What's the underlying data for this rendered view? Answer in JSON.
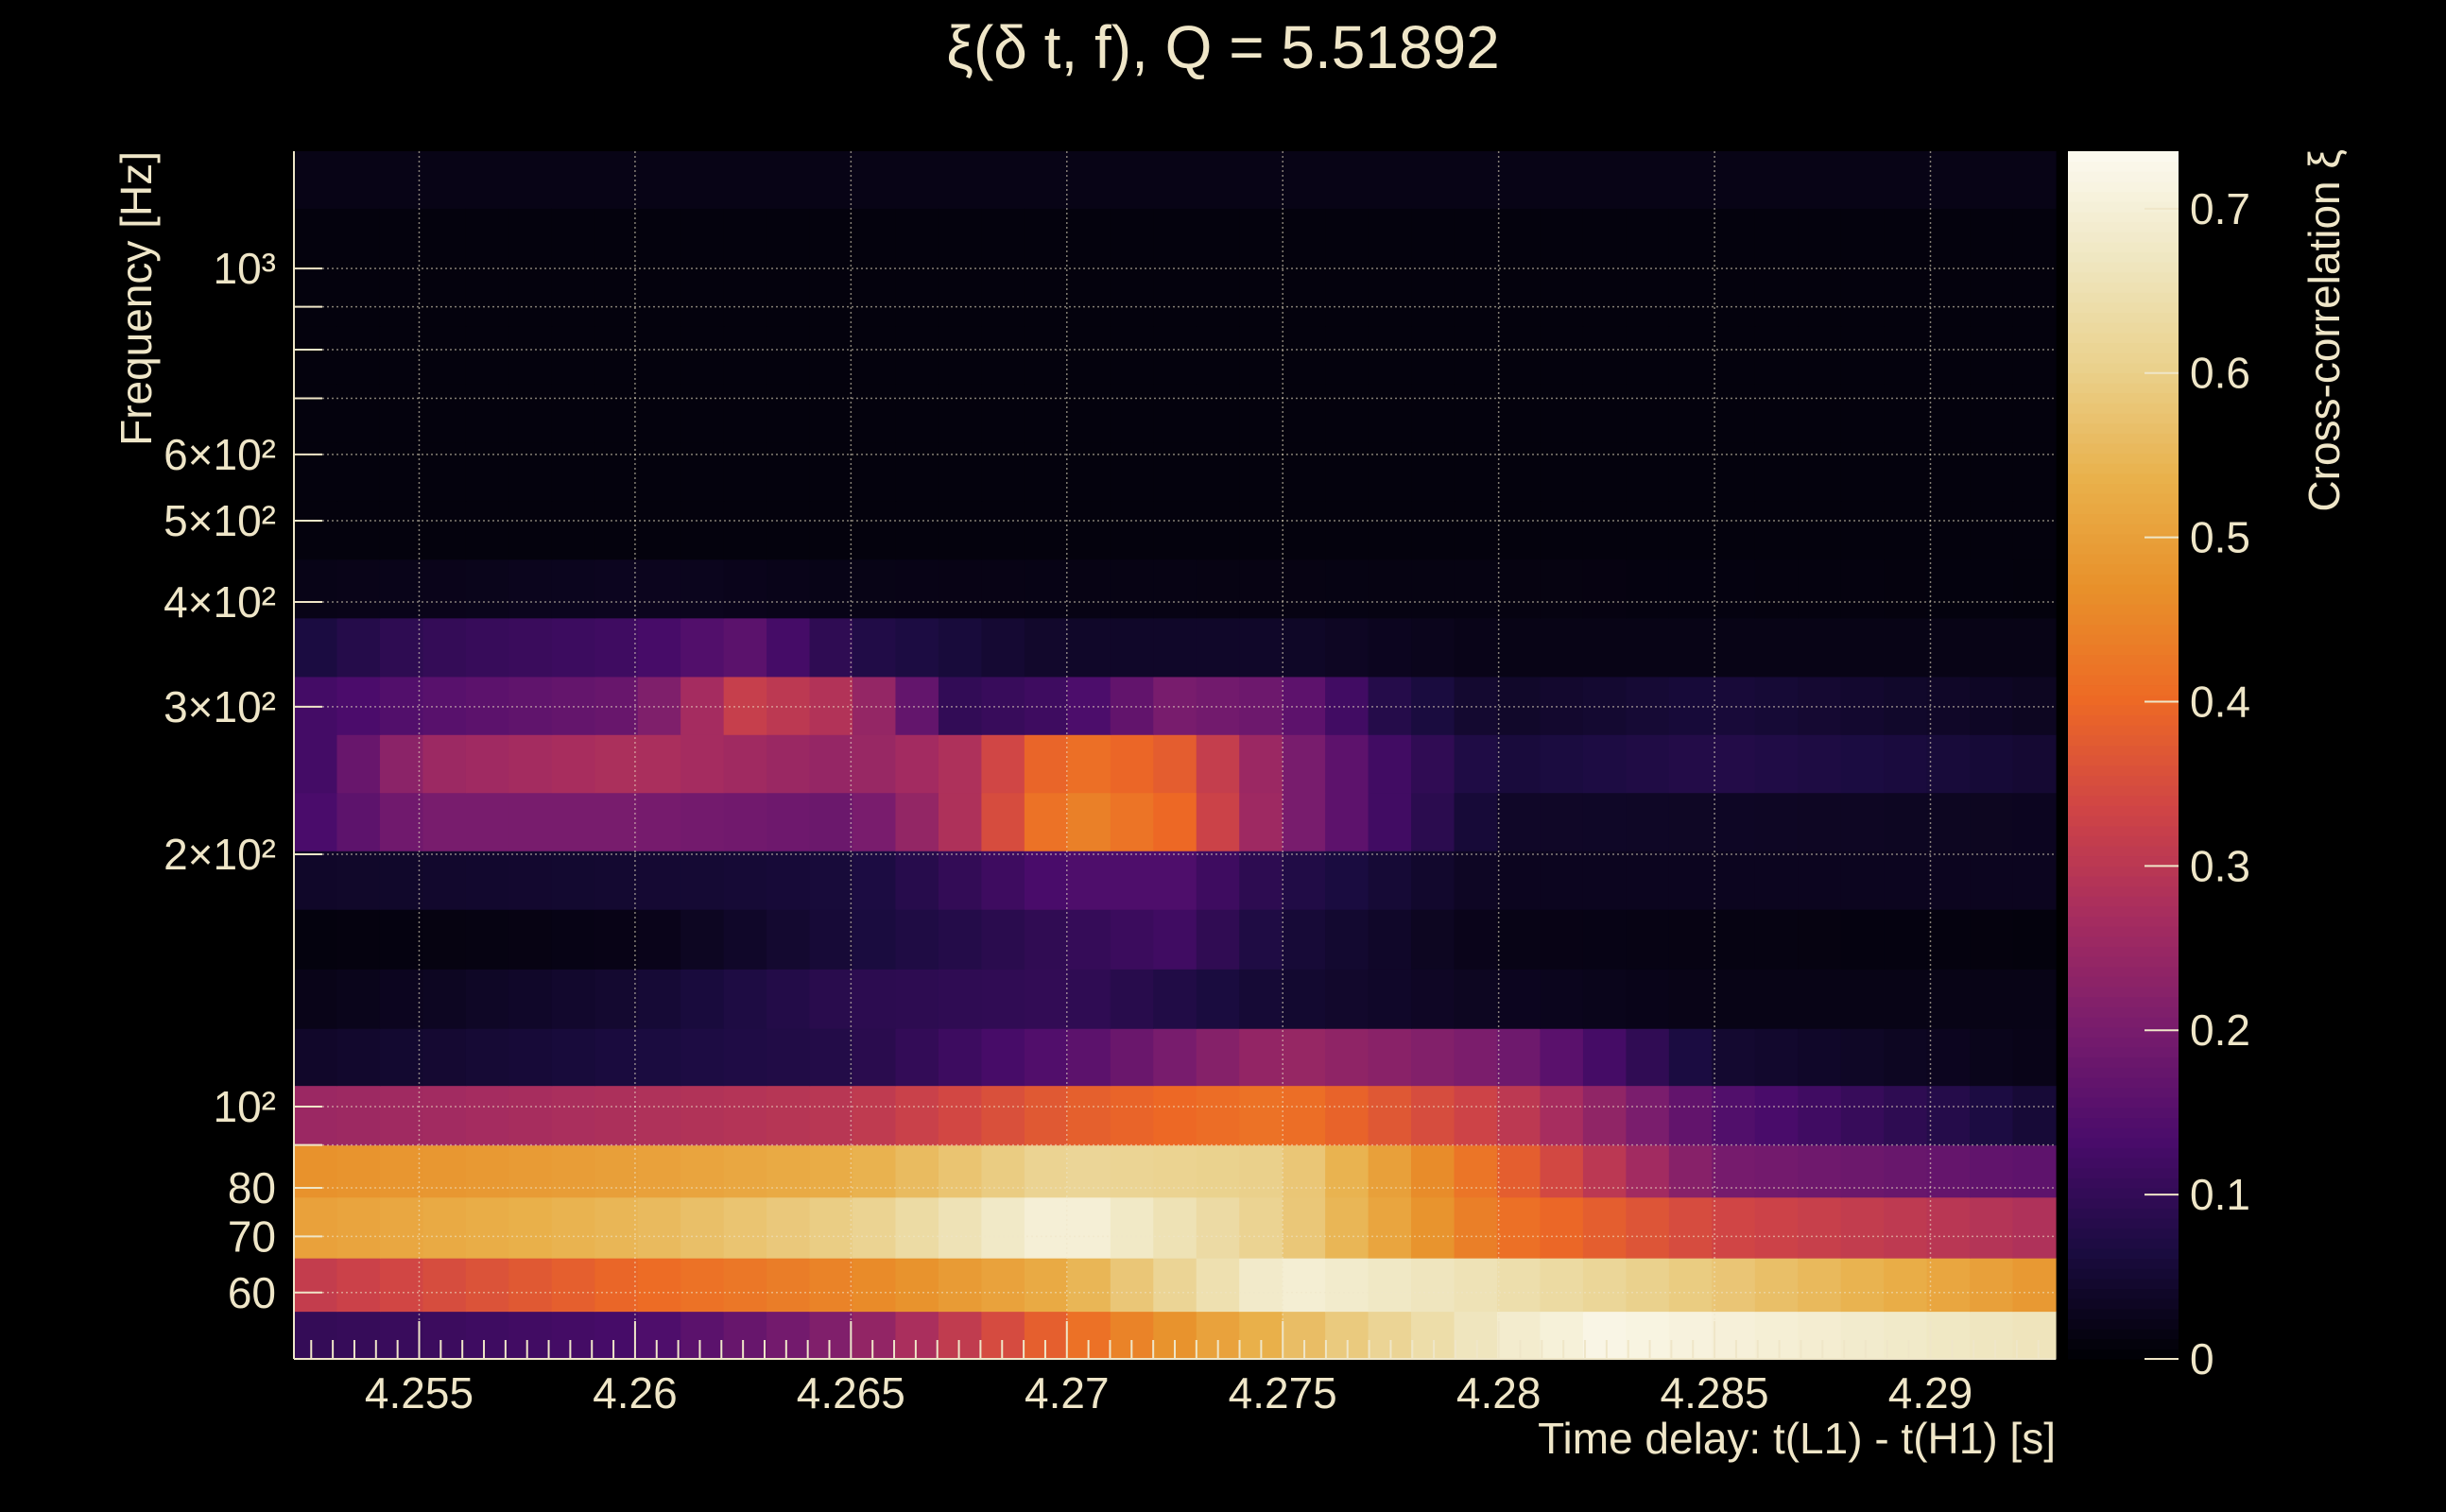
{
  "chart_data": {
    "type": "heatmap",
    "title": "ξ(δ t, f), Q = 5.51892",
    "xlabel": "Time delay: t(L1) - t(H1) [s]",
    "ylabel": "Frequency [Hz]",
    "colorbar_label": "Cross-correlation ξ",
    "x_range": [
      4.2521,
      4.2929
    ],
    "y_range_hz": [
      50,
      1380
    ],
    "y_scale": "log",
    "x_ticks": [
      {
        "value": 4.255,
        "label": "4.255"
      },
      {
        "value": 4.26,
        "label": "4.26"
      },
      {
        "value": 4.265,
        "label": "4.265"
      },
      {
        "value": 4.27,
        "label": "4.27"
      },
      {
        "value": 4.275,
        "label": "4.275"
      },
      {
        "value": 4.28,
        "label": "4.28"
      },
      {
        "value": 4.285,
        "label": "4.285"
      },
      {
        "value": 4.29,
        "label": "4.29"
      }
    ],
    "y_ticks": [
      {
        "value": 60,
        "label": "60"
      },
      {
        "value": 70,
        "label": "70"
      },
      {
        "value": 80,
        "label": "80"
      },
      {
        "value": 100,
        "label": "10²"
      },
      {
        "value": 200,
        "label": "2×10²"
      },
      {
        "value": 300,
        "label": "3×10²"
      },
      {
        "value": 400,
        "label": "4×10²"
      },
      {
        "value": 500,
        "label": "5×10²"
      },
      {
        "value": 600,
        "label": "6×10²"
      },
      {
        "value": 1000,
        "label": "10³"
      }
    ],
    "y_gridlines_hz": [
      60,
      70,
      80,
      90,
      100,
      200,
      300,
      400,
      500,
      600,
      700,
      800,
      900,
      1000
    ],
    "colorbar_range": [
      0,
      0.735
    ],
    "colorbar_ticks": [
      {
        "value": 0,
        "label": "0"
      },
      {
        "value": 0.1,
        "label": "0.1"
      },
      {
        "value": 0.2,
        "label": "0.2"
      },
      {
        "value": 0.3,
        "label": "0.3"
      },
      {
        "value": 0.4,
        "label": "0.4"
      },
      {
        "value": 0.5,
        "label": "0.5"
      },
      {
        "value": 0.6,
        "label": "0.6"
      },
      {
        "value": 0.7,
        "label": "0.7"
      }
    ],
    "grid": true,
    "colormap": [
      "#000004",
      "#1b0c41",
      "#4a0c6b",
      "#781c6d",
      "#a52c60",
      "#cf4446",
      "#ed6925",
      "#e8902a",
      "#e9b04a",
      "#ead08a",
      "#efe6c0",
      "#fcfaf0"
    ],
    "colormap_max": 0.735,
    "rows": [
      {
        "name": "row1",
        "f_low": 50,
        "f_high": 57,
        "knots": [
          [
            4.2521,
            0.1
          ],
          [
            4.26,
            0.13
          ],
          [
            4.265,
            0.22
          ],
          [
            4.27,
            0.4
          ],
          [
            4.275,
            0.55
          ],
          [
            4.28,
            0.68
          ],
          [
            4.2825,
            0.72
          ],
          [
            4.2929,
            0.66
          ]
        ]
      },
      {
        "name": "row2",
        "f_low": 57,
        "f_high": 66,
        "knots": [
          [
            4.2521,
            0.31
          ],
          [
            4.26,
            0.4
          ],
          [
            4.265,
            0.45
          ],
          [
            4.27,
            0.53
          ],
          [
            4.275,
            0.7
          ],
          [
            4.28,
            0.65
          ],
          [
            4.29,
            0.52
          ],
          [
            4.2929,
            0.48
          ]
        ]
      },
      {
        "name": "row3",
        "f_low": 66,
        "f_high": 78,
        "knots": [
          [
            4.2521,
            0.5
          ],
          [
            4.26,
            0.55
          ],
          [
            4.265,
            0.6
          ],
          [
            4.27,
            0.71
          ],
          [
            4.275,
            0.6
          ],
          [
            4.28,
            0.42
          ],
          [
            4.285,
            0.34
          ],
          [
            4.2929,
            0.28
          ]
        ]
      },
      {
        "name": "row4",
        "f_low": 78,
        "f_high": 90,
        "knots": [
          [
            4.2521,
            0.47
          ],
          [
            4.26,
            0.5
          ],
          [
            4.265,
            0.53
          ],
          [
            4.27,
            0.62
          ],
          [
            4.275,
            0.6
          ],
          [
            4.28,
            0.4
          ],
          [
            4.285,
            0.2
          ],
          [
            4.2929,
            0.16
          ]
        ]
      },
      {
        "name": "row5",
        "f_low": 90,
        "f_high": 106,
        "knots": [
          [
            4.2521,
            0.25
          ],
          [
            4.265,
            0.3
          ],
          [
            4.27,
            0.38
          ],
          [
            4.275,
            0.42
          ],
          [
            4.28,
            0.32
          ],
          [
            4.285,
            0.15
          ],
          [
            4.2929,
            0.05
          ]
        ]
      },
      {
        "name": "row6",
        "f_low": 106,
        "f_high": 124,
        "knots": [
          [
            4.2521,
            0.04
          ],
          [
            4.265,
            0.08
          ],
          [
            4.27,
            0.15
          ],
          [
            4.275,
            0.25
          ],
          [
            4.28,
            0.2
          ],
          [
            4.285,
            0.05
          ],
          [
            4.2929,
            0.02
          ]
        ]
      },
      {
        "name": "row7",
        "f_low": 124,
        "f_high": 146,
        "knots": [
          [
            4.2521,
            0.02
          ],
          [
            4.26,
            0.05
          ],
          [
            4.265,
            0.09
          ],
          [
            4.27,
            0.1
          ],
          [
            4.275,
            0.05
          ],
          [
            4.28,
            0.03
          ],
          [
            4.285,
            0.02
          ],
          [
            4.2929,
            0.02
          ]
        ]
      },
      {
        "name": "row8",
        "f_low": 146,
        "f_high": 172,
        "knots": [
          [
            4.2521,
            0.01
          ],
          [
            4.26,
            0.02
          ],
          [
            4.265,
            0.06
          ],
          [
            4.27,
            0.1
          ],
          [
            4.2725,
            0.12
          ],
          [
            4.275,
            0.06
          ],
          [
            4.28,
            0.02
          ],
          [
            4.2929,
            0.01
          ]
        ]
      },
      {
        "name": "row9",
        "f_low": 172,
        "f_high": 202,
        "knots": [
          [
            4.2521,
            0.04
          ],
          [
            4.26,
            0.05
          ],
          [
            4.265,
            0.06
          ],
          [
            4.27,
            0.14
          ],
          [
            4.2725,
            0.14
          ],
          [
            4.275,
            0.08
          ],
          [
            4.28,
            0.03
          ],
          [
            4.2929,
            0.03
          ]
        ]
      },
      {
        "name": "row10",
        "f_low": 202,
        "f_high": 237,
        "knots": [
          [
            4.2521,
            0.12
          ],
          [
            4.255,
            0.2
          ],
          [
            4.26,
            0.2
          ],
          [
            4.265,
            0.18
          ],
          [
            4.2675,
            0.28
          ],
          [
            4.27,
            0.45
          ],
          [
            4.2725,
            0.4
          ],
          [
            4.275,
            0.22
          ],
          [
            4.2775,
            0.12
          ],
          [
            4.28,
            0.04
          ],
          [
            4.2929,
            0.03
          ]
        ]
      },
      {
        "name": "row11",
        "f_low": 237,
        "f_high": 278,
        "knots": [
          [
            4.2521,
            0.1
          ],
          [
            4.255,
            0.25
          ],
          [
            4.26,
            0.28
          ],
          [
            4.265,
            0.24
          ],
          [
            4.2675,
            0.28
          ],
          [
            4.27,
            0.42
          ],
          [
            4.2725,
            0.38
          ],
          [
            4.275,
            0.22
          ],
          [
            4.2775,
            0.12
          ],
          [
            4.28,
            0.06
          ],
          [
            4.285,
            0.08
          ],
          [
            4.2929,
            0.05
          ]
        ]
      },
      {
        "name": "row12",
        "f_low": 278,
        "f_high": 326,
        "knots": [
          [
            4.2521,
            0.12
          ],
          [
            4.255,
            0.15
          ],
          [
            4.26,
            0.18
          ],
          [
            4.2625,
            0.32
          ],
          [
            4.265,
            0.28
          ],
          [
            4.2675,
            0.1
          ],
          [
            4.27,
            0.12
          ],
          [
            4.2725,
            0.2
          ],
          [
            4.275,
            0.18
          ],
          [
            4.2775,
            0.08
          ],
          [
            4.28,
            0.04
          ],
          [
            4.285,
            0.06
          ],
          [
            4.2929,
            0.03
          ]
        ]
      },
      {
        "name": "row13",
        "f_low": 326,
        "f_high": 383,
        "knots": [
          [
            4.2521,
            0.06
          ],
          [
            4.255,
            0.1
          ],
          [
            4.26,
            0.12
          ],
          [
            4.2625,
            0.16
          ],
          [
            4.265,
            0.08
          ],
          [
            4.27,
            0.04
          ],
          [
            4.275,
            0.04
          ],
          [
            4.28,
            0.02
          ],
          [
            4.2929,
            0.02
          ]
        ]
      },
      {
        "name": "row14",
        "f_low": 383,
        "f_high": 450,
        "knots": [
          [
            4.2521,
            0.02
          ],
          [
            4.26,
            0.03
          ],
          [
            4.265,
            0.02
          ],
          [
            4.2929,
            0.01
          ]
        ]
      },
      {
        "name": "row15",
        "f_low": 450,
        "f_high": 528,
        "knots": [
          [
            4.2521,
            0.01
          ],
          [
            4.2929,
            0.01
          ]
        ]
      },
      {
        "name": "row16",
        "f_low": 528,
        "f_high": 620,
        "knots": [
          [
            4.2521,
            0.01
          ],
          [
            4.2929,
            0.01
          ]
        ]
      },
      {
        "name": "row17",
        "f_low": 620,
        "f_high": 728,
        "knots": [
          [
            4.2521,
            0.01
          ],
          [
            4.2929,
            0.01
          ]
        ]
      },
      {
        "name": "row18",
        "f_low": 728,
        "f_high": 855,
        "knots": [
          [
            4.2521,
            0.01
          ],
          [
            4.2929,
            0.01
          ]
        ]
      },
      {
        "name": "row19",
        "f_low": 855,
        "f_high": 1004,
        "knots": [
          [
            4.2521,
            0.01
          ],
          [
            4.2929,
            0.01
          ]
        ]
      },
      {
        "name": "row20",
        "f_low": 1004,
        "f_high": 1180,
        "knots": [
          [
            4.2521,
            0.01
          ],
          [
            4.2929,
            0.01
          ]
        ]
      },
      {
        "name": "row21",
        "f_low": 1180,
        "f_high": 1380,
        "knots": [
          [
            4.2521,
            0.02
          ],
          [
            4.2929,
            0.02
          ]
        ]
      }
    ]
  }
}
